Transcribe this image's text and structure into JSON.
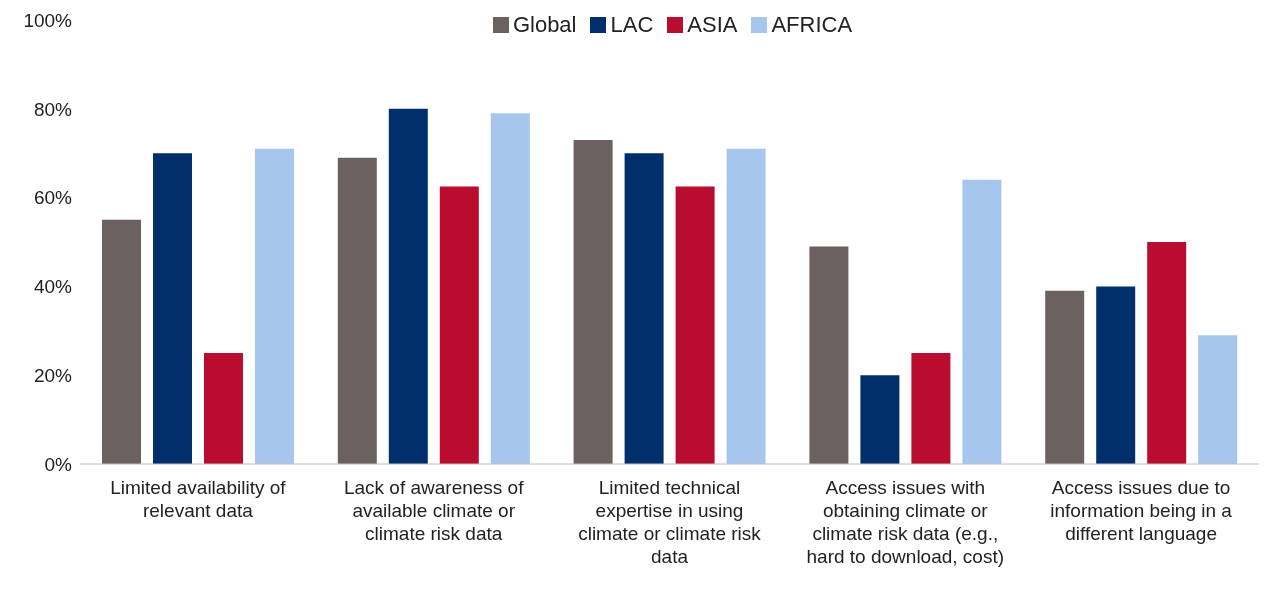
{
  "chart_data": {
    "type": "bar",
    "categories": [
      "Limited availability of relevant data",
      "Lack of awareness of available climate or climate risk data",
      "Limited technical expertise in using climate or climate risk data",
      "Access issues with obtaining climate or climate risk data (e.g., hard to download, cost)",
      "Access issues due to information being in a different language"
    ],
    "series": [
      {
        "name": "Global",
        "color": "#6b625f",
        "values": [
          55,
          69,
          73,
          49,
          39
        ]
      },
      {
        "name": "LAC",
        "color": "#002f6c",
        "values": [
          70,
          80,
          70,
          20,
          40
        ]
      },
      {
        "name": "ASIA",
        "color": "#ba0c2f",
        "values": [
          25,
          62.5,
          62.5,
          25,
          50
        ]
      },
      {
        "name": "AFRICA",
        "color": "#a7c6ed",
        "values": [
          71,
          79,
          71,
          64,
          29
        ]
      }
    ],
    "ylim": [
      0,
      100
    ],
    "yticks": [
      {
        "value": 0,
        "label": "0%"
      },
      {
        "value": 20,
        "label": "20%"
      },
      {
        "value": 40,
        "label": "40%"
      },
      {
        "value": 60,
        "label": "60%"
      },
      {
        "value": 80,
        "label": "80%"
      },
      {
        "value": 100,
        "label": "100%"
      }
    ],
    "grid": false,
    "legend": "top"
  }
}
